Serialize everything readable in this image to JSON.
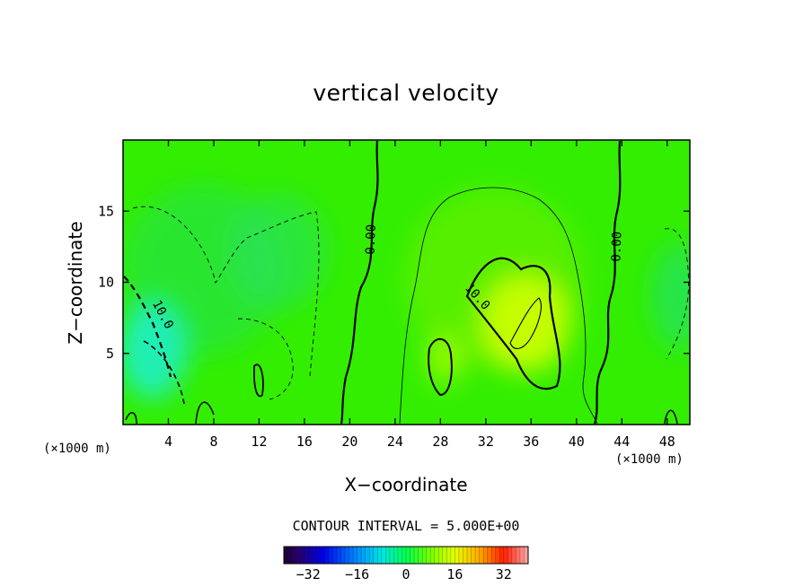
{
  "chart_data": {
    "type": "heatmap",
    "title": "vertical velocity",
    "xlabel": "X−coordinate",
    "ylabel": "Z−coordinate",
    "x_unit_left": "(×1000 m)",
    "x_unit_right": "(×1000 m)",
    "xlim": [
      0,
      50
    ],
    "ylim": [
      0,
      20
    ],
    "x_ticks": [
      4,
      8,
      12,
      16,
      20,
      24,
      28,
      32,
      36,
      40,
      44,
      48
    ],
    "x_tick_labels": [
      "4",
      "8",
      "12",
      "16",
      "20",
      "24",
      "28",
      "32",
      "36",
      "40",
      "44",
      "48"
    ],
    "y_ticks": [
      5,
      10,
      15
    ],
    "y_tick_labels": [
      "5",
      "10",
      "15"
    ],
    "contour_interval_label": "CONTOUR INTERVAL = 5.000E+00",
    "contour_labels": [
      {
        "text": "10.0",
        "x": 3.2,
        "y": 7.6
      },
      {
        "text": "0.00",
        "x": 22.2,
        "y": 13.0
      },
      {
        "text": "10.0",
        "x": 31.0,
        "y": 8.8
      },
      {
        "text": "0.00",
        "x": 43.9,
        "y": 12.5
      }
    ],
    "colorbar": {
      "range": [
        -40,
        40
      ],
      "tick_values": [
        -32,
        -16,
        0,
        16,
        32
      ],
      "tick_labels": [
        "−32",
        "−16",
        "0",
        "16",
        "32"
      ]
    },
    "features": [
      {
        "kind": "updraft",
        "x": 34,
        "z": 7,
        "peak_value": 15
      },
      {
        "kind": "downdraft",
        "x": 3,
        "z": 4,
        "peak_value": -15
      }
    ],
    "grid": false
  }
}
